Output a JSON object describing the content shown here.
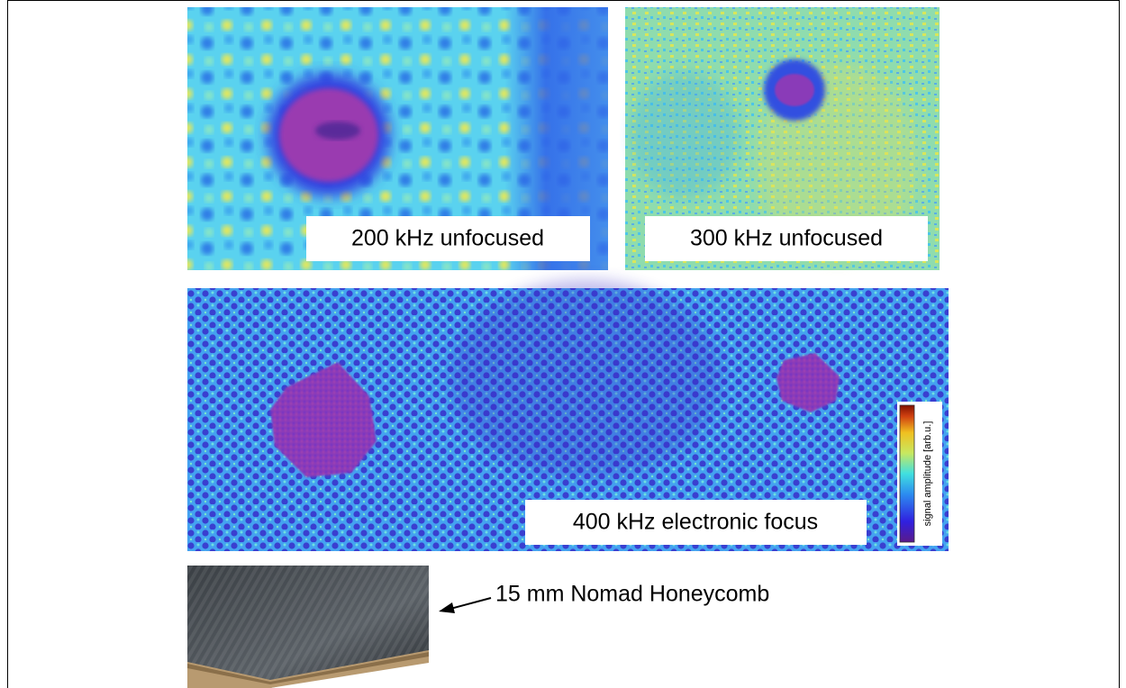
{
  "panels": [
    {
      "label": "200 kHz unfocused"
    },
    {
      "label": "300 kHz unfocused"
    },
    {
      "label": "400 kHz electronic focus"
    }
  ],
  "colorbar": {
    "label": "signal amplitude [arb.u.]"
  },
  "sample": {
    "label": "15 mm Nomad Honeycomb"
  }
}
